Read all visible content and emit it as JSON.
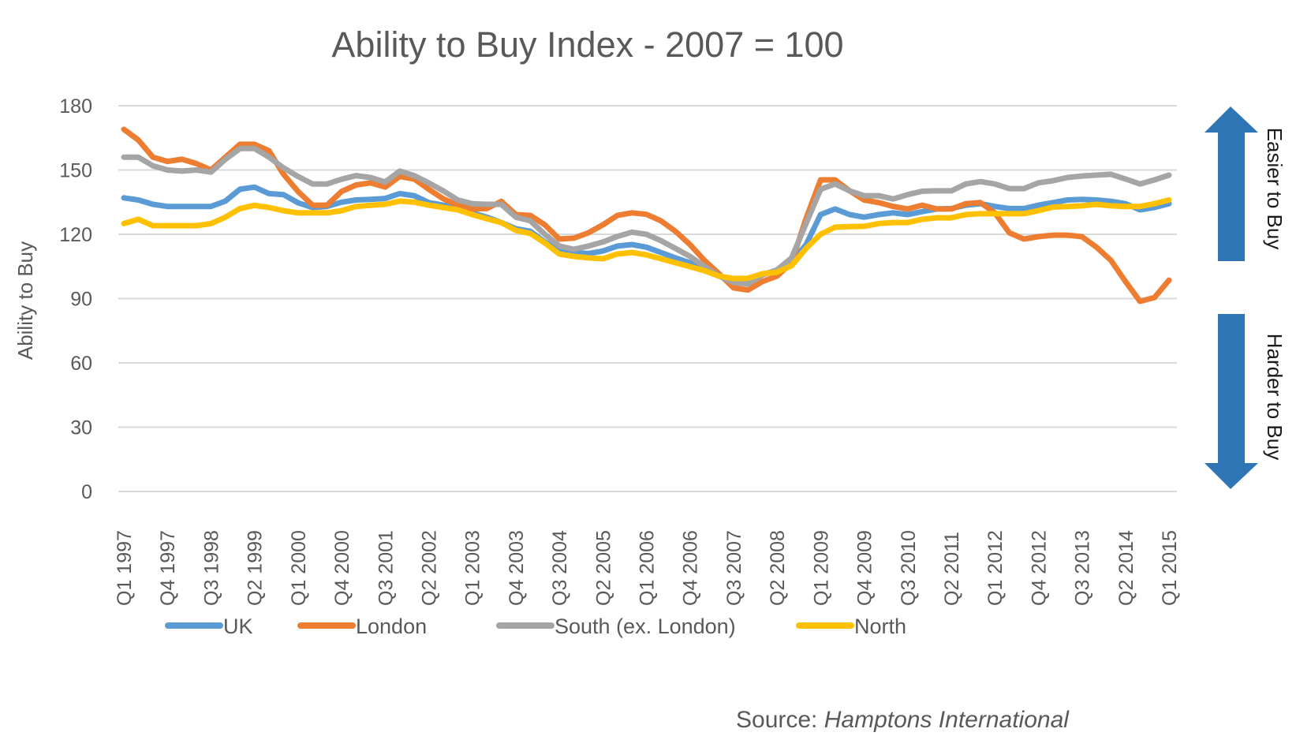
{
  "chart_data": {
    "type": "line",
    "title": "Ability to Buy Index - 2007 = 100",
    "xlabel": "",
    "ylabel": "Ability to Buy",
    "ylim": [
      0,
      180
    ],
    "yticks": [
      0,
      30,
      60,
      90,
      120,
      150,
      180
    ],
    "grid": true,
    "legend_position": "bottom",
    "x_start": "Q1 1997",
    "x_end": "Q1 2015",
    "x_tick_labels": [
      "Q1 1997",
      "Q4 1997",
      "Q3 1998",
      "Q2 1999",
      "Q1 2000",
      "Q4 2000",
      "Q3 2001",
      "Q2 2002",
      "Q1 2003",
      "Q4 2003",
      "Q3 2004",
      "Q2 2005",
      "Q1 2006",
      "Q4 2006",
      "Q3 2007",
      "Q2 2008",
      "Q1 2009",
      "Q4 2009",
      "Q3 2010",
      "Q2 2011",
      "Q1 2012",
      "Q4 2012",
      "Q3 2013",
      "Q2 2014",
      "Q1 2015"
    ],
    "series": [
      {
        "name": "UK",
        "color": "#5B9BD5",
        "values": [
          137,
          136,
          134,
          133,
          133,
          133,
          133,
          135.5,
          141,
          142,
          139,
          138.5,
          134.7,
          132.5,
          133,
          135,
          136,
          136.3,
          136.7,
          139,
          138,
          134.8,
          133.6,
          132.5,
          130,
          128,
          125.5,
          122.6,
          121.4,
          116.4,
          112.3,
          111.5,
          111,
          112.2,
          114.5,
          115.2,
          114,
          111.5,
          109,
          106.7,
          103.4,
          100.5,
          98.6,
          98.6,
          101.2,
          103,
          107,
          115.2,
          129.2,
          131.8,
          129.2,
          128,
          129.2,
          130,
          129.2,
          130.6,
          131.8,
          132,
          133.6,
          134.3,
          133,
          132,
          132,
          133.6,
          134.8,
          136,
          136.3,
          136,
          135.4,
          134.3,
          131.4,
          132.5,
          134.3
        ]
      },
      {
        "name": "London",
        "color": "#ED7D31",
        "values": [
          169,
          164,
          156,
          154,
          155,
          153,
          150,
          156,
          162,
          162,
          159,
          148,
          140,
          133.6,
          133.6,
          140,
          143,
          144,
          142,
          147,
          145.8,
          141,
          136.6,
          133.6,
          131.8,
          132,
          135.4,
          129.2,
          128.8,
          124.4,
          117.8,
          118.2,
          120.7,
          124.4,
          128.8,
          130,
          129.3,
          126.3,
          121.4,
          115.2,
          107.8,
          101.6,
          95,
          94,
          98,
          100.5,
          106.7,
          127.4,
          145.4,
          145.4,
          140.3,
          136,
          134.8,
          133,
          131.8,
          133.6,
          131.8,
          131.8,
          134.3,
          134.8,
          130,
          120.7,
          117.8,
          118.9,
          119.6,
          119.6,
          118.9,
          114,
          107.8,
          98,
          88.7,
          90.5,
          98.6
        ]
      },
      {
        "name": "South (ex. London)",
        "color": "#A5A5A5",
        "values": [
          156,
          156,
          152,
          150,
          149.5,
          150,
          149,
          155,
          160,
          160,
          156,
          151,
          147,
          143.5,
          143.5,
          145.7,
          147.4,
          146.5,
          144.4,
          149.5,
          147.4,
          144,
          140.3,
          136,
          134.3,
          134,
          134,
          128,
          126.3,
          120,
          114.5,
          113,
          114.5,
          116.4,
          119,
          121,
          120,
          117,
          113.4,
          109.7,
          105,
          100.5,
          97.5,
          96.8,
          101,
          103.4,
          109,
          125,
          141,
          143.5,
          140.3,
          138,
          138,
          136.5,
          138.5,
          140.1,
          140.3,
          140.3,
          143.5,
          144.6,
          143.5,
          141.3,
          141.3,
          144,
          145,
          146.5,
          147.2,
          147.6,
          148,
          145.8,
          143.5,
          145.4,
          147.6
        ]
      },
      {
        "name": "North",
        "color": "#FFC000",
        "values": [
          125,
          127,
          124,
          124,
          124,
          124,
          125,
          128,
          132,
          133.5,
          132.5,
          131,
          130,
          130,
          130,
          131,
          133,
          133.5,
          134,
          135.5,
          135,
          133.6,
          132.5,
          131.4,
          129.2,
          127.3,
          125.5,
          121.8,
          120.4,
          116,
          110.8,
          109.7,
          109,
          108.6,
          110.8,
          111.5,
          110.4,
          108.6,
          106.7,
          104.9,
          103,
          100.5,
          99.4,
          99.5,
          101.6,
          102.3,
          105.3,
          113.4,
          120,
          123.3,
          123.6,
          123.7,
          125,
          125.5,
          125.5,
          127,
          127.7,
          127.7,
          129.2,
          129.6,
          129.6,
          129.6,
          129.6,
          131,
          132.7,
          133,
          133.3,
          134,
          133.3,
          133,
          133,
          134.3,
          136
        ]
      }
    ],
    "annotations": [
      {
        "text": "Easier to Buy",
        "direction": "up",
        "color": "#2E75B6"
      },
      {
        "text": "Harder to Buy",
        "direction": "down",
        "color": "#2E75B6"
      }
    ]
  },
  "source": {
    "label": "Source:",
    "name": "Hamptons International"
  }
}
